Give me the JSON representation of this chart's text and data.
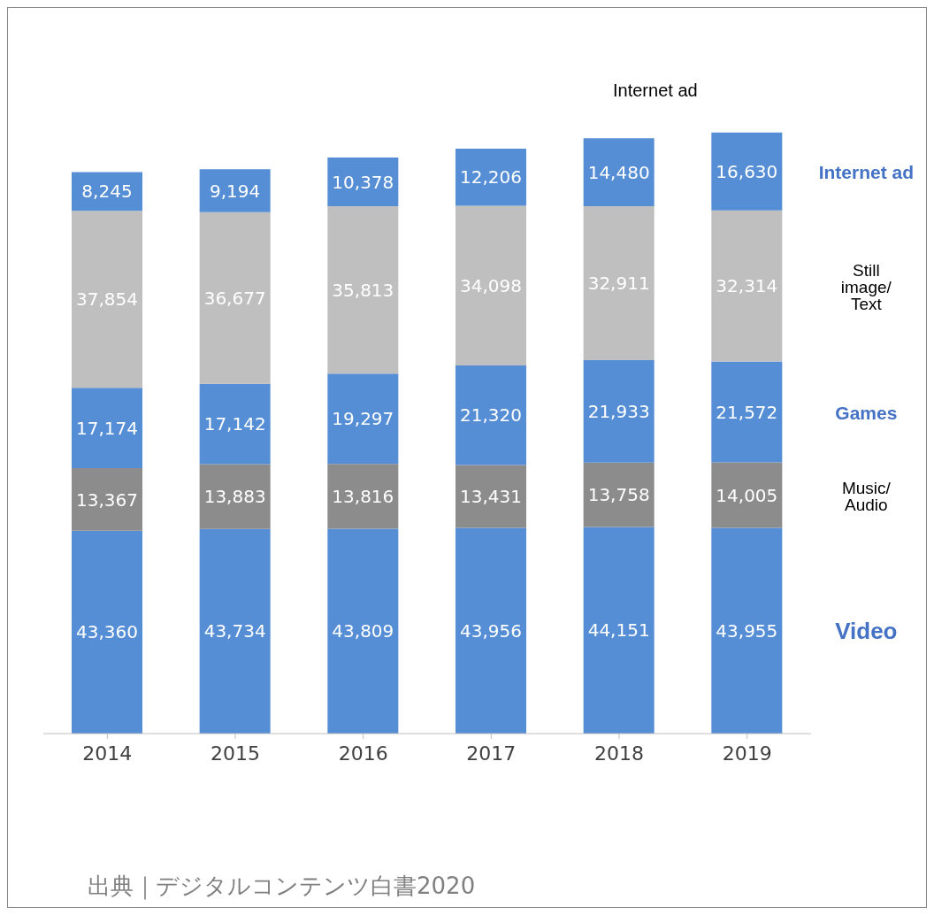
{
  "chart_data": {
    "type": "bar",
    "stacked": true,
    "categories": [
      "2014",
      "2015",
      "2016",
      "2017",
      "2018",
      "2019"
    ],
    "series": [
      {
        "name": "Video",
        "color": "#558ed5",
        "values": [
          43360,
          43734,
          43809,
          43956,
          44151,
          43955
        ],
        "value_labels": [
          "43,360",
          "43,734",
          "43,809",
          "43,956",
          "44,151",
          "43,955"
        ]
      },
      {
        "name": "Music/Audio",
        "color": "#8c8c8c",
        "values": [
          13367,
          13883,
          13816,
          13431,
          13758,
          14005
        ],
        "value_labels": [
          "13,367",
          "13,883",
          "13,816",
          "13,431",
          "13,758",
          "14,005"
        ]
      },
      {
        "name": "Games",
        "color": "#558ed5",
        "values": [
          17174,
          17142,
          19297,
          21320,
          21933,
          21572
        ],
        "value_labels": [
          "17,174",
          "17,142",
          "19,297",
          "21,320",
          "21,933",
          "21,572"
        ]
      },
      {
        "name": "Still image/Text",
        "color": "#bfbfbf",
        "values": [
          37854,
          36677,
          35813,
          34098,
          32911,
          32314
        ],
        "value_labels": [
          "37,854",
          "36,677",
          "35,813",
          "34,098",
          "32,911",
          "32,314"
        ]
      },
      {
        "name": "Internet ad",
        "color": "#558ed5",
        "values": [
          8245,
          9194,
          10378,
          12206,
          14480,
          16630
        ],
        "value_labels": [
          "8,245",
          "9,194",
          "10,378",
          "12,206",
          "14,480",
          "16,630"
        ]
      }
    ],
    "annotations": [
      "Internet ad",
      "出典｜デジタルコンテンツ白書2020"
    ]
  }
}
